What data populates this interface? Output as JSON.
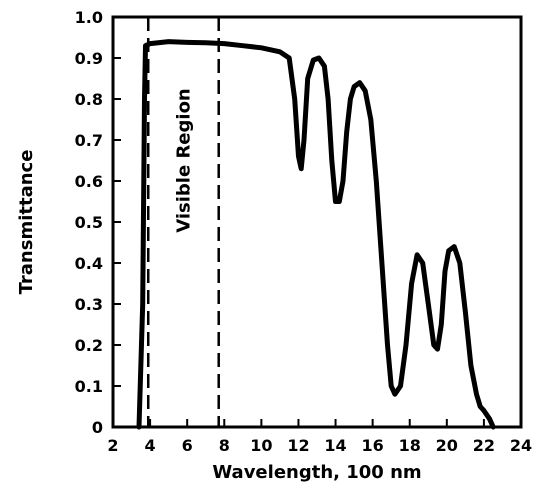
{
  "chart_data": {
    "type": "line",
    "title": "",
    "xlabel": "Wavelength, 100 nm",
    "ylabel": "Transmittance",
    "xlim": [
      2,
      24
    ],
    "ylim": [
      0,
      1.0
    ],
    "x_ticks": [
      2,
      4,
      6,
      8,
      10,
      12,
      14,
      16,
      18,
      20,
      22,
      24
    ],
    "x_tick_labels": [
      "2",
      "4",
      "6",
      "8",
      "10",
      "12",
      "14",
      "16",
      "18",
      "20",
      "22",
      "24"
    ],
    "y_ticks": [
      0,
      0.1,
      0.2,
      0.3,
      0.4,
      0.5,
      0.6,
      0.7,
      0.8,
      0.9,
      1.0
    ],
    "y_tick_labels": [
      "0",
      "0.1",
      "0.2",
      "0.3",
      "0.4",
      "0.5",
      "0.6",
      "0.7",
      "0.8",
      "0.9",
      "1.0"
    ],
    "grid": false,
    "annotations": [
      {
        "text": "Visible Region",
        "orientation": "vertical",
        "bounds_x": [
          3.9,
          7.7
        ],
        "y": 0.65
      }
    ],
    "series": [
      {
        "x": [
          3.4,
          3.6,
          3.7,
          3.75,
          4.0,
          5.0,
          6.0,
          7.0,
          8.0,
          9.0,
          10.0,
          11.0,
          11.5,
          11.8,
          12.0,
          12.15,
          12.3,
          12.5,
          12.8,
          13.1,
          13.4,
          13.6,
          13.8,
          14.0,
          14.2,
          14.4,
          14.6,
          14.8,
          15.0,
          15.3,
          15.6,
          15.9,
          16.2,
          16.5,
          16.8,
          17.0,
          17.2,
          17.5,
          17.8,
          18.1,
          18.4,
          18.7,
          19.0,
          19.3,
          19.5,
          19.7,
          19.9,
          20.1,
          20.4,
          20.7,
          21.0,
          21.3,
          21.6,
          21.8,
          22.0,
          22.3,
          22.5
        ],
        "y": [
          0,
          0.3,
          0.8,
          0.93,
          0.935,
          0.94,
          0.938,
          0.937,
          0.935,
          0.93,
          0.925,
          0.915,
          0.9,
          0.8,
          0.66,
          0.63,
          0.7,
          0.85,
          0.895,
          0.9,
          0.88,
          0.8,
          0.65,
          0.55,
          0.55,
          0.6,
          0.72,
          0.8,
          0.83,
          0.84,
          0.82,
          0.75,
          0.6,
          0.4,
          0.2,
          0.1,
          0.08,
          0.1,
          0.2,
          0.35,
          0.42,
          0.4,
          0.3,
          0.2,
          0.19,
          0.25,
          0.38,
          0.43,
          0.44,
          0.4,
          0.28,
          0.15,
          0.08,
          0.05,
          0.04,
          0.02,
          0
        ]
      }
    ]
  }
}
